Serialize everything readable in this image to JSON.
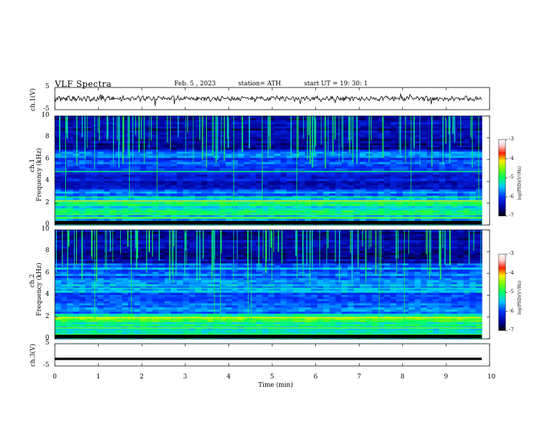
{
  "header": {
    "title": "VLF  Spectra",
    "date": "Feb. 5  , 2023",
    "station": "station= ATH",
    "start": "start  UT  =    19: 30: 1"
  },
  "chart_data": {
    "type": "heatmap",
    "xlabel": "Time  (min)",
    "xlim": [
      0,
      10
    ],
    "x_ticks": [
      "0",
      "1",
      "2",
      "3",
      "4",
      "5",
      "6",
      "7",
      "8",
      "9",
      "10"
    ],
    "ch1_wave": {
      "ylabel": "ch.1(V)",
      "ylim": [
        -5,
        5
      ],
      "y_ticks": [
        "5",
        "-5"
      ]
    },
    "ch3_wave": {
      "ylabel": "ch.3(V)",
      "ylim": [
        -5,
        5
      ],
      "y_ticks": [
        "5",
        "-5"
      ],
      "level": -1.8
    },
    "spectrograms": [
      {
        "ylabel_line1": "ch.1",
        "ylabel_line2": "Frequency  (kHz)",
        "ylim": [
          0,
          10
        ],
        "y_ticks": [
          "10",
          "8",
          "6",
          "4",
          "2",
          "0"
        ],
        "colorbar_label": "log(PSD)(V²/Hz)",
        "colorbar_ticks": [
          "-3",
          "-4",
          "-5",
          "-6",
          "-7"
        ],
        "clim": [
          -7,
          -3
        ]
      },
      {
        "ylabel_line1": "ch.2",
        "ylabel_line2": "Frequency  (kHz)",
        "ylim": [
          0,
          10
        ],
        "y_ticks": [
          "10",
          "8",
          "6",
          "4",
          "2",
          "0"
        ],
        "colorbar_label": "log(PSD)(V²/Hz)",
        "colorbar_ticks": [
          "-3",
          "-4",
          "-5",
          "-6",
          "-7"
        ],
        "clim": [
          -7,
          -3
        ]
      }
    ],
    "data_end_min": 9.82
  }
}
